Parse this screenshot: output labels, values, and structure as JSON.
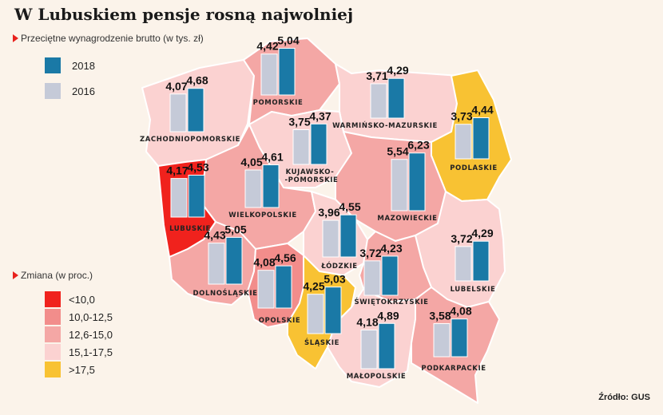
{
  "title": "W Lubuskiem pensje rosną najwolniej",
  "subtitle": "Przeciętne wynagrodzenie brutto (w tys. zł)",
  "legend_years": [
    {
      "label": "2018",
      "color": "#1a79a6"
    },
    {
      "label": "2016",
      "color": "#c5cad8"
    }
  ],
  "change_title": "Zmiana (w proc.)",
  "change_legend": [
    {
      "label": "<10,0",
      "color": "#f0221d"
    },
    {
      "label": "10,0-12,5",
      "color": "#f28d8b"
    },
    {
      "label": "12,6-15,0",
      "color": "#f4a7a5"
    },
    {
      "label": "15,1-17,5",
      "color": "#fbd2d1"
    },
    {
      "label": ">17,5",
      "color": "#f8c233"
    }
  ],
  "source": "Źródło: GUS",
  "chart_data": {
    "type": "bar",
    "title": "W Lubuskiem pensje rosną najwolniej",
    "subtitle": "Przeciętne wynagrodzenie brutto (w tys. zł)",
    "series_names": [
      "2016",
      "2018"
    ],
    "regions": [
      {
        "name": "POMORSKIE",
        "v2016": 4.42,
        "v2018": 5.04,
        "change_class": "12,6-15,0"
      },
      {
        "name": "ZACHODNIOPOMORSKIE",
        "v2016": 4.07,
        "v2018": 4.68,
        "change_class": "15,1-17,5"
      },
      {
        "name": "WARMIŃSKO-MAZURSKIE",
        "v2016": 3.71,
        "v2018": 4.29,
        "change_class": "15,1-17,5"
      },
      {
        "name": "PODLASKIE",
        "v2016": 3.73,
        "v2018": 4.44,
        "change_class": ">17,5"
      },
      {
        "name": "KUJAWSKO-POMORSKIE",
        "v2016": 3.75,
        "v2018": 4.37,
        "change_class": "15,1-17,5"
      },
      {
        "name": "WIELKOPOLSKIE",
        "v2016": 4.05,
        "v2018": 4.61,
        "change_class": "12,6-15,0"
      },
      {
        "name": "LUBUSKIE",
        "v2016": 4.17,
        "v2018": 4.53,
        "change_class": "<10,0"
      },
      {
        "name": "MAZOWIECKIE",
        "v2016": 5.54,
        "v2018": 6.23,
        "change_class": "12,6-15,0"
      },
      {
        "name": "ŁÓDZKIE",
        "v2016": 3.96,
        "v2018": 4.55,
        "change_class": "15,1-17,5"
      },
      {
        "name": "DOLNOŚLĄSKIE",
        "v2016": 4.43,
        "v2018": 5.05,
        "change_class": "12,6-15,0"
      },
      {
        "name": "LUBELSKIE",
        "v2016": 3.72,
        "v2018": 4.29,
        "change_class": "15,1-17,5"
      },
      {
        "name": "OPOLSKIE",
        "v2016": 4.08,
        "v2018": 4.56,
        "change_class": "10,0-12,5"
      },
      {
        "name": "ŚWIĘTOKRZYSKIE",
        "v2016": 3.72,
        "v2018": 4.23,
        "change_class": "12,6-15,0"
      },
      {
        "name": "ŚLĄSKIE",
        "v2016": 4.25,
        "v2018": 5.03,
        "change_class": ">17,5"
      },
      {
        "name": "MAŁOPOLSKIE",
        "v2016": 4.18,
        "v2018": 4.89,
        "change_class": "15,1-17,5"
      },
      {
        "name": "PODKARPACKIE",
        "v2016": 3.58,
        "v2018": 4.08,
        "change_class": "12,6-15,0"
      }
    ]
  }
}
